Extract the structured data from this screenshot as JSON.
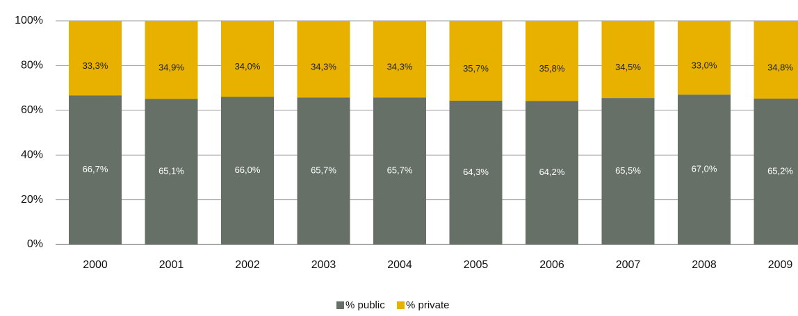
{
  "chart_data": {
    "type": "stacked_bar",
    "categories": [
      "2000",
      "2001",
      "2002",
      "2003",
      "2004",
      "2005",
      "2006",
      "2007",
      "2008",
      "2009"
    ],
    "series": [
      {
        "name": "% public",
        "color": "#667066",
        "values": [
          66.7,
          65.1,
          66.0,
          65.7,
          65.7,
          64.3,
          64.2,
          65.5,
          67.0,
          65.2
        ],
        "value_labels": [
          "66,7%",
          "65,1%",
          "66,0%",
          "65,7%",
          "65,7%",
          "64,3%",
          "64,2%",
          "65,5%",
          "67,0%",
          "65,2%"
        ]
      },
      {
        "name": "% private",
        "color": "#e8b100",
        "values": [
          33.3,
          34.9,
          34.0,
          34.3,
          34.3,
          35.7,
          35.8,
          34.5,
          33.0,
          34.8
        ],
        "value_labels": [
          "33,3%",
          "34,9%",
          "34,0%",
          "34,3%",
          "34,3%",
          "35,7%",
          "35,8%",
          "34,5%",
          "33,0%",
          "34,8%"
        ]
      }
    ],
    "ylim": [
      0,
      100
    ],
    "yticks": [
      {
        "value": 0,
        "label": "0%"
      },
      {
        "value": 20,
        "label": "20%"
      },
      {
        "value": 40,
        "label": "40%"
      },
      {
        "value": 60,
        "label": "60%"
      },
      {
        "value": 80,
        "label": "80%"
      },
      {
        "value": 100,
        "label": "100%"
      }
    ],
    "grid": true
  }
}
